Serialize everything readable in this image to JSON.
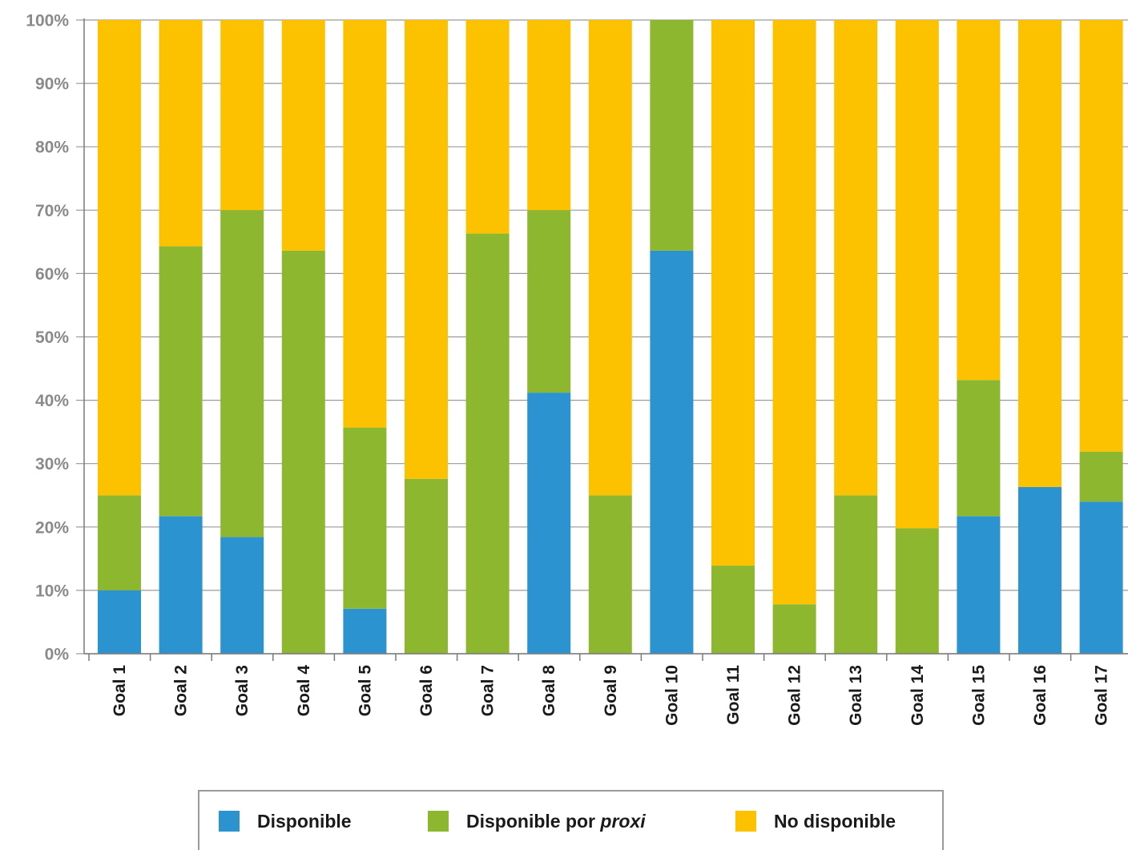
{
  "chart_data": {
    "type": "bar",
    "stacked": true,
    "categories": [
      "Goal 1",
      "Goal 2",
      "Goal 3",
      "Goal 4",
      "Goal 5",
      "Goal 6",
      "Goal 7",
      "Goal 8",
      "Goal 9",
      "Goal 10",
      "Goal 11",
      "Goal 12",
      "Goal 13",
      "Goal 14",
      "Goal 15",
      "Goal 16",
      "Goal 17"
    ],
    "series": [
      {
        "name": "Disponible",
        "color": "#2b93d0",
        "values": [
          10,
          21.7,
          18.4,
          0,
          7.1,
          0,
          0,
          41.2,
          0,
          63.6,
          0,
          0,
          0,
          0,
          21.7,
          26.3,
          24
        ]
      },
      {
        "name_prefix": "Disponible por ",
        "name_italic": "proxi",
        "color": "#8db72e",
        "values": [
          15,
          42.6,
          51.6,
          63.6,
          28.6,
          27.6,
          66.3,
          28.8,
          25,
          36.4,
          13.9,
          7.8,
          25,
          19.8,
          21.5,
          0,
          7.9
        ]
      },
      {
        "name": "No disponible",
        "color": "#fcc200",
        "values": [
          75,
          35.7,
          30,
          36.4,
          64.3,
          72.4,
          33.7,
          30,
          75,
          0,
          86.1,
          92.2,
          75,
          80.2,
          56.8,
          73.7,
          68.1
        ]
      }
    ],
    "y_ticks": [
      "0%",
      "10%",
      "20%",
      "30%",
      "40%",
      "50%",
      "60%",
      "70%",
      "80%",
      "90%",
      "100%"
    ],
    "ylim": [
      0,
      100
    ],
    "grid": true,
    "legend_position": "bottom",
    "title": "",
    "xlabel": "",
    "ylabel": ""
  }
}
